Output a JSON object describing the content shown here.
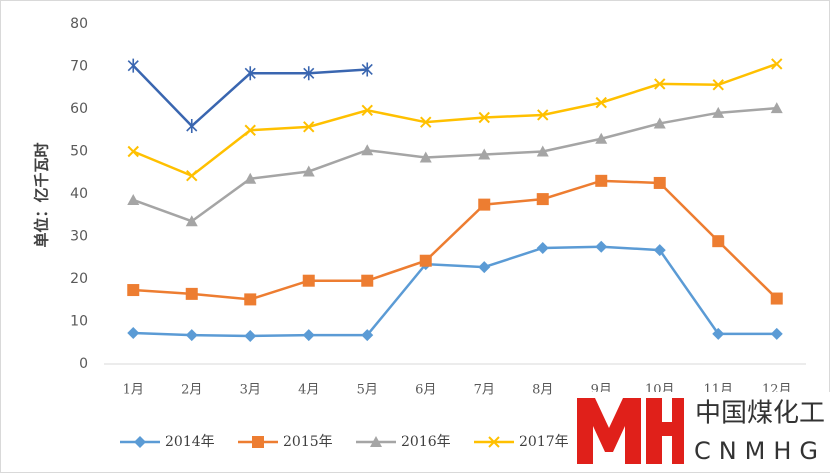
{
  "chart_data": {
    "type": "line",
    "y_label": "单位：亿千瓦时",
    "categories": [
      "1月",
      "2月",
      "3月",
      "4月",
      "5月",
      "6月",
      "7月",
      "8月",
      "9月",
      "10月",
      "11月",
      "12月"
    ],
    "ylim": [
      0,
      80
    ],
    "yticks": [
      0,
      10,
      20,
      30,
      40,
      50,
      60,
      70,
      80
    ],
    "series": [
      {
        "name": "2014年",
        "color": "#5b9bd5",
        "marker": "diamond",
        "values": [
          7.3,
          6.8,
          6.6,
          6.8,
          6.8,
          23.5,
          22.8,
          27.3,
          27.6,
          26.8,
          7.1,
          7.1
        ]
      },
      {
        "name": "2015年",
        "color": "#ed7d31",
        "marker": "square",
        "values": [
          17.4,
          16.5,
          15.2,
          19.6,
          19.6,
          24.3,
          37.5,
          38.8,
          43.1,
          42.6,
          28.9,
          15.4
        ]
      },
      {
        "name": "2016年",
        "color": "#a5a5a5",
        "marker": "triangle",
        "values": [
          38.6,
          33.6,
          43.6,
          45.3,
          50.3,
          48.6,
          49.3,
          50.0,
          53.0,
          56.6,
          59.1,
          60.2
        ]
      },
      {
        "name": "2017年",
        "color": "#ffc000",
        "marker": "cross",
        "values": [
          50.0,
          44.3,
          55.0,
          55.8,
          59.7,
          56.9,
          58.0,
          58.6,
          61.5,
          65.9,
          65.7,
          70.6
        ]
      },
      {
        "color": "#3a66b0",
        "marker": "star",
        "values": [
          70.2,
          56.0,
          68.4,
          68.4,
          69.3,
          null,
          null,
          null,
          null,
          null,
          null,
          null
        ]
      }
    ]
  },
  "watermark": {
    "title": "中国煤化工",
    "subtitle": "CNMHG"
  }
}
